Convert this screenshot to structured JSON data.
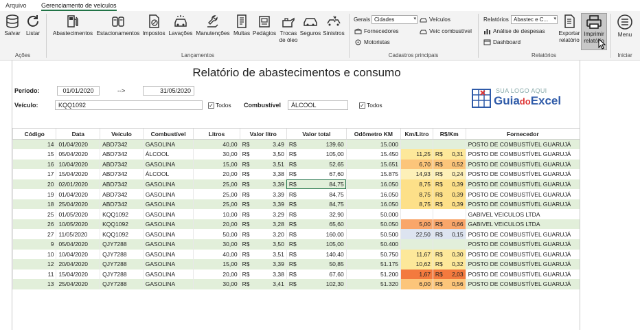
{
  "tabs": [
    "Arquivo",
    "Gerenciamento de veículos"
  ],
  "ribbon": {
    "acoes": {
      "label": "Ações",
      "buttons": [
        "Salvar",
        "Listar"
      ]
    },
    "lancamentos": {
      "label": "Lançamentos",
      "buttons": [
        "Abastecimentos",
        "Estacionamentos",
        "Impostos",
        "Lavações",
        "Manutenções",
        "Multas",
        "Pedágios",
        "Trocas de óleo",
        "Seguros",
        "Sinistros"
      ]
    },
    "cadastros": {
      "label": "Cadastros principais",
      "gerais_label": "Gerais",
      "gerais_value": "Cidades",
      "veiculos": "Veículos",
      "fornecedores": "Fornecedores",
      "veic_combustivel": "Veíc combustível",
      "motoristas": "Motoristas"
    },
    "relatorios": {
      "label": "Relatórios",
      "relatorios_label": "Relatórios",
      "relatorios_value": "Abastec e C...",
      "analise": "Análise de despesas",
      "dashboard": "Dashboard",
      "exportar": "Exportar relatório",
      "imprimir": "Imprimir relatório"
    },
    "iniciar": {
      "label": "Iniciar",
      "menu": "Menu"
    }
  },
  "report": {
    "title": "Relatório de abastecimentos e consumo",
    "periodo_label": "Período:",
    "date_from": "01/01/2020",
    "arrow": "-->",
    "date_to": "31/05/2020",
    "veiculo_label": "Veículo:",
    "veiculo_value": "KQQ1092",
    "todos": "Todos",
    "combustivel_label": "Combustível",
    "combustivel_value": "ÁLCOOL",
    "check_mark": "✓",
    "logo_top": "SUA LOGO AQUI",
    "logo_main_a": "Guia",
    "logo_main_b": "do",
    "logo_main_c": "Excel"
  },
  "table": {
    "currency": "R$",
    "headers": [
      "Código",
      "Data",
      "Veículo",
      "Combustível",
      "Litros",
      "Valor litro",
      "Valor total",
      "Odômetro KM",
      "Km/Litro",
      "R$/Km",
      "Fornecedor"
    ],
    "rows": [
      [
        "14",
        "01/04/2020",
        "ABD7342",
        "GASOLINA",
        "40,00",
        "3,49",
        "139,60",
        "15.000",
        "",
        "",
        "POSTO DE COMBUSTÍVEL GUARUJÁ"
      ],
      [
        "15",
        "05/04/2020",
        "ABD7342",
        "ÁLCOOL",
        "30,00",
        "3,50",
        "105,00",
        "15.450",
        "11,25",
        "0,31",
        "POSTO DE COMBUSTÍVEL GUARUJÁ"
      ],
      [
        "16",
        "10/04/2020",
        "ABD7342",
        "GASOLINA",
        "15,00",
        "3,51",
        "52,65",
        "15.651",
        "6,70",
        "0,52",
        "POSTO DE COMBUSTÍVEL GUARUJÁ"
      ],
      [
        "17",
        "15/04/2020",
        "ABD7342",
        "ÁLCOOL",
        "20,00",
        "3,38",
        "67,60",
        "15.875",
        "14,93",
        "0,24",
        "POSTO DE COMBUSTÍVEL GUARUJÁ"
      ],
      [
        "20",
        "02/01/2020",
        "ABD7342",
        "GASOLINA",
        "25,00",
        "3,39",
        "84,75",
        "16.050",
        "8,75",
        "0,39",
        "POSTO DE COMBUSTÍVEL GUARUJÁ"
      ],
      [
        "19",
        "01/04/2020",
        "ABD7342",
        "GASOLINA",
        "25,00",
        "3,39",
        "84,75",
        "16.050",
        "8,75",
        "0,39",
        "POSTO DE COMBUSTÍVEL GUARUJÁ"
      ],
      [
        "18",
        "25/04/2020",
        "ABD7342",
        "GASOLINA",
        "25,00",
        "3,39",
        "84,75",
        "16.050",
        "8,75",
        "0,39",
        "POSTO DE COMBUSTÍVEL GUARUJÁ"
      ],
      [
        "25",
        "01/05/2020",
        "KQQ1092",
        "GASOLINA",
        "10,00",
        "3,29",
        "32,90",
        "50.000",
        "",
        "",
        "GABIVEL VEICULOS LTDA"
      ],
      [
        "26",
        "10/05/2020",
        "KQQ1092",
        "GASOLINA",
        "20,00",
        "3,28",
        "65,60",
        "50.050",
        "5,00",
        "0,66",
        "GABIVEL VEICULOS LTDA"
      ],
      [
        "27",
        "11/05/2020",
        "KQQ1092",
        "GASOLINA",
        "50,00",
        "3,20",
        "160,00",
        "50.500",
        "22,50",
        "0,15",
        "POSTO DE COMBUSTÍVEL GUARUJÁ"
      ],
      [
        "9",
        "05/04/2020",
        "QJY7288",
        "GASOLINA",
        "30,00",
        "3,50",
        "105,00",
        "50.400",
        "",
        "",
        "POSTO DE COMBUSTÍVEL GUARUJÁ"
      ],
      [
        "10",
        "10/04/2020",
        "QJY7288",
        "GASOLINA",
        "40,00",
        "3,51",
        "140,40",
        "50.750",
        "11,67",
        "0,30",
        "POSTO DE COMBUSTÍVEL GUARUJÁ"
      ],
      [
        "12",
        "20/04/2020",
        "QJY7288",
        "GASOLINA",
        "15,00",
        "3,39",
        "50,85",
        "51.175",
        "10,62",
        "0,32",
        "POSTO DE COMBUSTÍVEL GUARUJÁ"
      ],
      [
        "11",
        "15/04/2020",
        "QJY7288",
        "GASOLINA",
        "20,00",
        "3,38",
        "67,60",
        "51.200",
        "1,67",
        "2,03",
        "POSTO DE COMBUSTÍVEL GUARUJÁ"
      ],
      [
        "13",
        "25/04/2020",
        "QJY7288",
        "GASOLINA",
        "30,00",
        "3,41",
        "102,30",
        "51.320",
        "6,00",
        "0,56",
        "POSTO DE COMBUSTÍVEL GUARUJÁ"
      ]
    ],
    "kml_colors": [
      "",
      "#fde89a",
      "#fcc57a",
      "#fdf0b8",
      "#fde089",
      "#fde089",
      "#fde089",
      "",
      "#f9a66a",
      "#dde4f0",
      "",
      "#fde89a",
      "#fde89a",
      "#f37a3e",
      "#fcc57a"
    ],
    "rskm_colors": [
      "",
      "#fde89a",
      "#fcc57a",
      "#fdf0b8",
      "#fde089",
      "#fde089",
      "#fde089",
      "",
      "#f9a66a",
      "#dde4f0",
      "",
      "#fde89a",
      "#fde89a",
      "#f37a3e",
      "#fcc57a"
    ],
    "selected_cell": {
      "row": 4,
      "col": 6
    }
  }
}
